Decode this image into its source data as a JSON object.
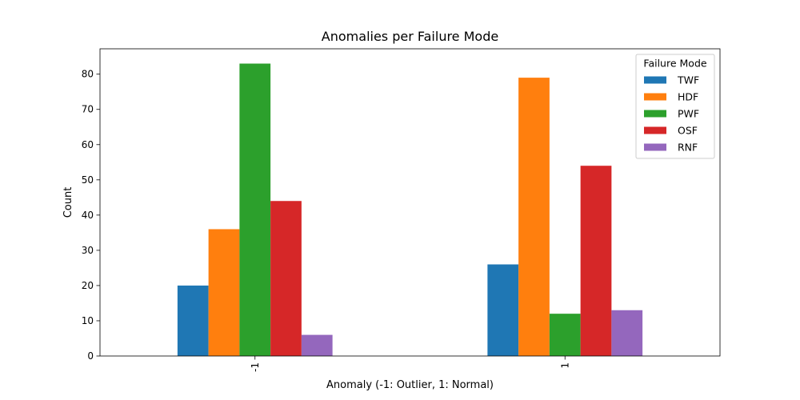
{
  "chart_data": {
    "type": "bar",
    "title": "Anomalies per Failure Mode",
    "xlabel": "Anomaly (-1: Outlier, 1: Normal)",
    "ylabel": "Count",
    "categories": [
      "-1",
      "1"
    ],
    "ylim": [
      0,
      87.2
    ],
    "yticks": [
      0,
      10,
      20,
      30,
      40,
      50,
      60,
      70,
      80
    ],
    "grid": false,
    "legend": {
      "title": "Failure Mode",
      "placement": "top-right"
    },
    "series": [
      {
        "name": "TWF",
        "color": "#1f77b4",
        "values": [
          20,
          26
        ]
      },
      {
        "name": "HDF",
        "color": "#ff7f0e",
        "values": [
          36,
          79
        ]
      },
      {
        "name": "PWF",
        "color": "#2ca02c",
        "values": [
          83,
          12
        ]
      },
      {
        "name": "OSF",
        "color": "#d62728",
        "values": [
          44,
          54
        ]
      },
      {
        "name": "RNF",
        "color": "#9467bd",
        "values": [
          6,
          13
        ]
      }
    ]
  }
}
